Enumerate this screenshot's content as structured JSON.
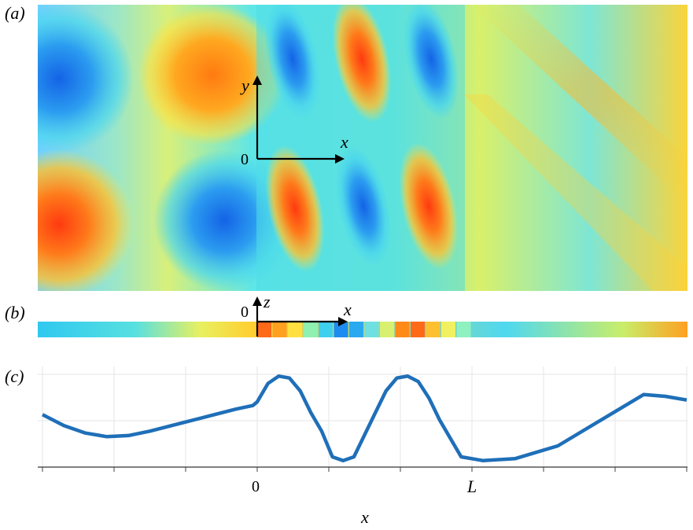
{
  "panels": {
    "a": {
      "label": "(a)"
    },
    "b": {
      "label": "(b)"
    },
    "c": {
      "label": "(c)"
    }
  },
  "panel_a_axes": {
    "x": "x",
    "y": "y",
    "origin": "0"
  },
  "panel_b_axes": {
    "x": "x",
    "z": "z",
    "origin": "0"
  },
  "panel_c": {
    "xlabel": "x",
    "ticks": {
      "zero": "0",
      "L": "L"
    }
  },
  "colors": {
    "curve": "#1f6fb8",
    "grid": "#e6e6e6",
    "field_low": "#1463e6",
    "field_mid": "#3fe0e8",
    "field_high": "#ff3a10"
  },
  "chart_data": {
    "type": "line",
    "title": "",
    "xlabel": "x",
    "ylabel": "",
    "x_ticks": [
      "0",
      "L"
    ],
    "x_range_in_L": [
      -1.0,
      2.0
    ],
    "series": [
      {
        "x": [
          -1.0,
          -0.9,
          -0.8,
          -0.7,
          -0.6,
          -0.5,
          -0.4,
          -0.3,
          -0.2,
          -0.1,
          -0.02,
          0.0,
          0.05,
          0.1,
          0.15,
          0.2,
          0.25,
          0.3,
          0.35,
          0.4,
          0.45,
          0.5,
          0.55,
          0.6,
          0.65,
          0.7,
          0.75,
          0.8,
          0.85,
          0.9,
          0.95,
          1.0,
          1.05,
          1.2,
          1.4,
          1.6,
          1.8,
          1.9,
          2.0
        ],
        "y": [
          0.45,
          0.15,
          -0.05,
          -0.15,
          -0.12,
          0.0,
          0.15,
          0.3,
          0.45,
          0.6,
          0.7,
          0.8,
          1.3,
          1.5,
          1.45,
          1.1,
          0.5,
          0.0,
          -0.7,
          -0.8,
          -0.7,
          -0.1,
          0.5,
          1.1,
          1.45,
          1.5,
          1.35,
          0.9,
          0.3,
          -0.2,
          -0.7,
          -0.75,
          -0.8,
          -0.75,
          -0.4,
          0.3,
          1.0,
          0.95,
          0.85
        ]
      }
    ]
  }
}
